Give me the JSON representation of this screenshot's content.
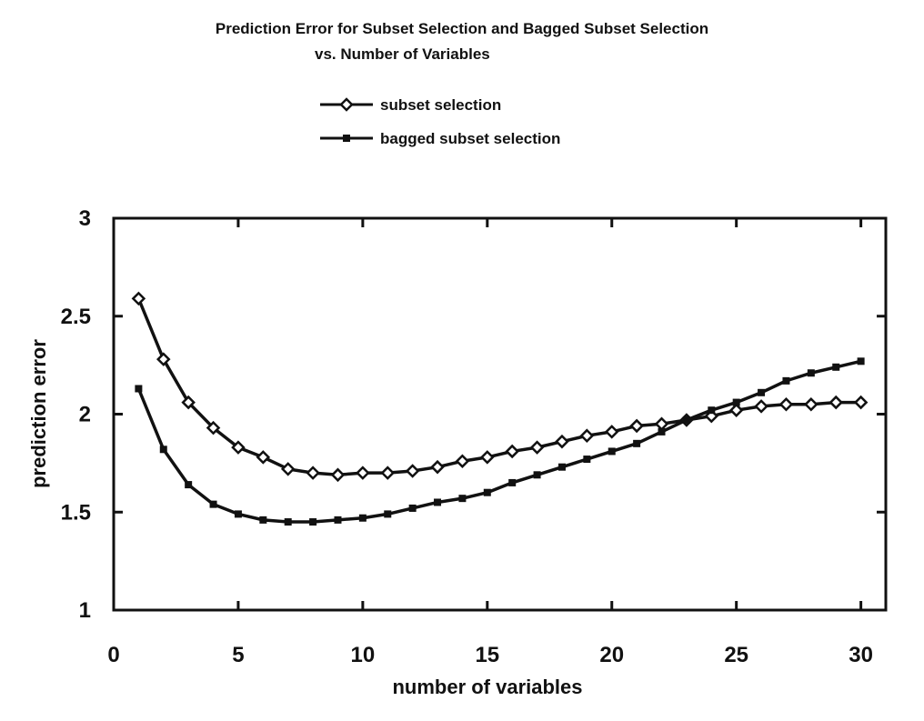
{
  "chart_data": {
    "type": "line",
    "title": "Prediction Error for Subset Selection and Bagged Subset Selection",
    "subtitle": "vs.  Number of Variables",
    "xlabel": "number of variables",
    "ylabel": "prediction error",
    "xlim": [
      0,
      31
    ],
    "ylim": [
      1,
      3
    ],
    "xticks": [
      0,
      5,
      10,
      15,
      20,
      25,
      30
    ],
    "yticks": [
      1,
      1.5,
      2,
      2.5,
      3
    ],
    "xtick_labels": [
      "0",
      "5",
      "10",
      "15",
      "20",
      "25",
      "30"
    ],
    "ytick_labels": [
      "1",
      "1.5",
      "2",
      "2.5",
      "3"
    ],
    "legend_position": "top-center",
    "x": [
      1,
      2,
      3,
      4,
      5,
      6,
      7,
      8,
      9,
      10,
      11,
      12,
      13,
      14,
      15,
      16,
      17,
      18,
      19,
      20,
      21,
      22,
      23,
      24,
      25,
      26,
      27,
      28,
      29,
      30
    ],
    "series": [
      {
        "name": "subset selection",
        "marker": "diamond",
        "values": [
          2.59,
          2.28,
          2.06,
          1.93,
          1.83,
          1.78,
          1.72,
          1.7,
          1.69,
          1.7,
          1.7,
          1.71,
          1.73,
          1.76,
          1.78,
          1.81,
          1.83,
          1.86,
          1.89,
          1.91,
          1.94,
          1.95,
          1.97,
          1.99,
          2.02,
          2.04,
          2.05,
          2.05,
          2.06,
          2.06
        ]
      },
      {
        "name": "bagged subset selection",
        "marker": "square",
        "values": [
          2.13,
          1.82,
          1.64,
          1.54,
          1.49,
          1.46,
          1.45,
          1.45,
          1.46,
          1.47,
          1.49,
          1.52,
          1.55,
          1.57,
          1.6,
          1.65,
          1.69,
          1.73,
          1.77,
          1.81,
          1.85,
          1.91,
          1.97,
          2.02,
          2.06,
          2.11,
          2.17,
          2.21,
          2.24,
          2.27
        ]
      }
    ]
  },
  "colors": {
    "line": "#111111",
    "background": "#ffffff"
  }
}
